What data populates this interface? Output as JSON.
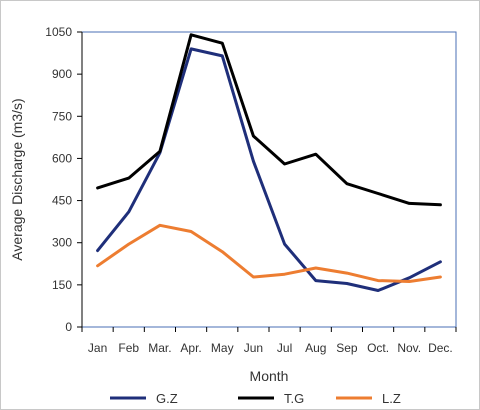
{
  "chart_data": {
    "type": "line",
    "title": "",
    "xlabel": "Month",
    "ylabel": "Average Discharge (m3/s)",
    "categories": [
      "Jan",
      "Feb",
      "Mar.",
      "Apr.",
      "May",
      "Jun",
      "Jul",
      "Aug",
      "Sep",
      "Oct.",
      "Nov.",
      "Dec."
    ],
    "ylim": [
      0,
      1050
    ],
    "yticks": [
      0,
      150,
      300,
      450,
      600,
      750,
      900,
      1050
    ],
    "grid": false,
    "legend_position": "bottom",
    "series": [
      {
        "name": "G.Z",
        "color": "#1f2f7a",
        "values": [
          272,
          410,
          620,
          990,
          965,
          590,
          295,
          165,
          155,
          130,
          175,
          232
        ]
      },
      {
        "name": "T.G",
        "color": "#000000",
        "values": [
          495,
          530,
          625,
          1040,
          1010,
          680,
          580,
          615,
          510,
          475,
          440,
          435
        ]
      },
      {
        "name": "L.Z",
        "color": "#ed7d31",
        "values": [
          218,
          295,
          362,
          340,
          268,
          178,
          188,
          210,
          192,
          165,
          162,
          178
        ]
      }
    ]
  }
}
